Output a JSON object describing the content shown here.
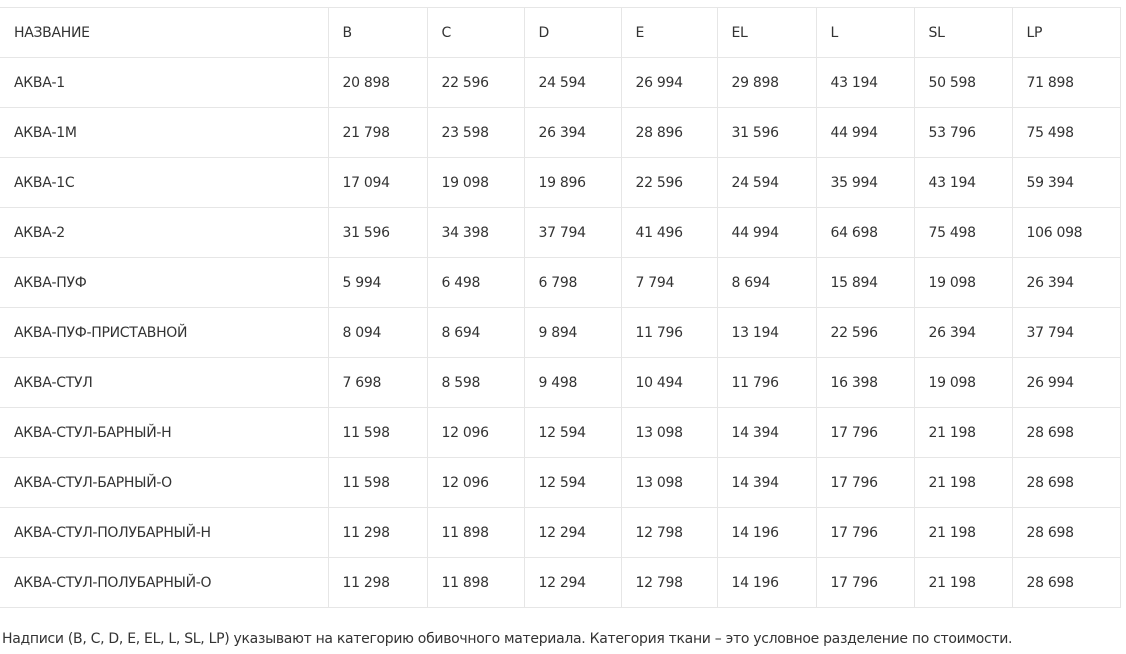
{
  "table": {
    "header": [
      "НАЗВАНИЕ",
      "B",
      "C",
      "D",
      "E",
      "EL",
      "L",
      "SL",
      "LP"
    ],
    "rows": [
      [
        "АКВА-1",
        "20 898",
        "22 596",
        "24 594",
        "26 994",
        "29 898",
        "43 194",
        "50 598",
        "71 898"
      ],
      [
        "АКВА-1М",
        "21 798",
        "23 598",
        "26 394",
        "28 896",
        "31 596",
        "44 994",
        "53 796",
        "75 498"
      ],
      [
        "АКВА-1С",
        "17 094",
        "19 098",
        "19 896",
        "22 596",
        "24 594",
        "35 994",
        "43 194",
        "59 394"
      ],
      [
        "АКВА-2",
        "31 596",
        "34 398",
        "37 794",
        "41 496",
        "44 994",
        "64 698",
        "75 498",
        "106 098"
      ],
      [
        "АКВА-ПУФ",
        "5 994",
        "6 498",
        "6 798",
        "7 794",
        "8 694",
        "15 894",
        "19 098",
        "26 394"
      ],
      [
        "АКВА-ПУФ-ПРИСТАВНОЙ",
        "8 094",
        "8 694",
        "9 894",
        "11 796",
        "13 194",
        "22 596",
        "26 394",
        "37 794"
      ],
      [
        "АКВА-СТУЛ",
        "7 698",
        "8 598",
        "9 498",
        "10 494",
        "11 796",
        "16 398",
        "19 098",
        "26 994"
      ],
      [
        "АКВА-СТУЛ-БАРНЫЙ-Н",
        "11 598",
        "12 096",
        "12 594",
        "13 098",
        "14 394",
        "17 796",
        "21 198",
        "28 698"
      ],
      [
        "АКВА-СТУЛ-БАРНЫЙ-О",
        "11 598",
        "12 096",
        "12 594",
        "13 098",
        "14 394",
        "17 796",
        "21 198",
        "28 698"
      ],
      [
        "АКВА-СТУЛ-ПОЛУБАРНЫЙ-Н",
        "11 298",
        "11 898",
        "12 294",
        "12 798",
        "14 196",
        "17 796",
        "21 198",
        "28 698"
      ],
      [
        "АКВА-СТУЛ-ПОЛУБАРНЫЙ-О",
        "11 298",
        "11 898",
        "12 294",
        "12 798",
        "14 196",
        "17 796",
        "21 198",
        "28 698"
      ]
    ]
  },
  "footnote": "Надписи (B, C, D, E, EL, L, SL, LP) указывают на категорию обивочного материала. Категория ткани – это условное разделение по стоимости."
}
